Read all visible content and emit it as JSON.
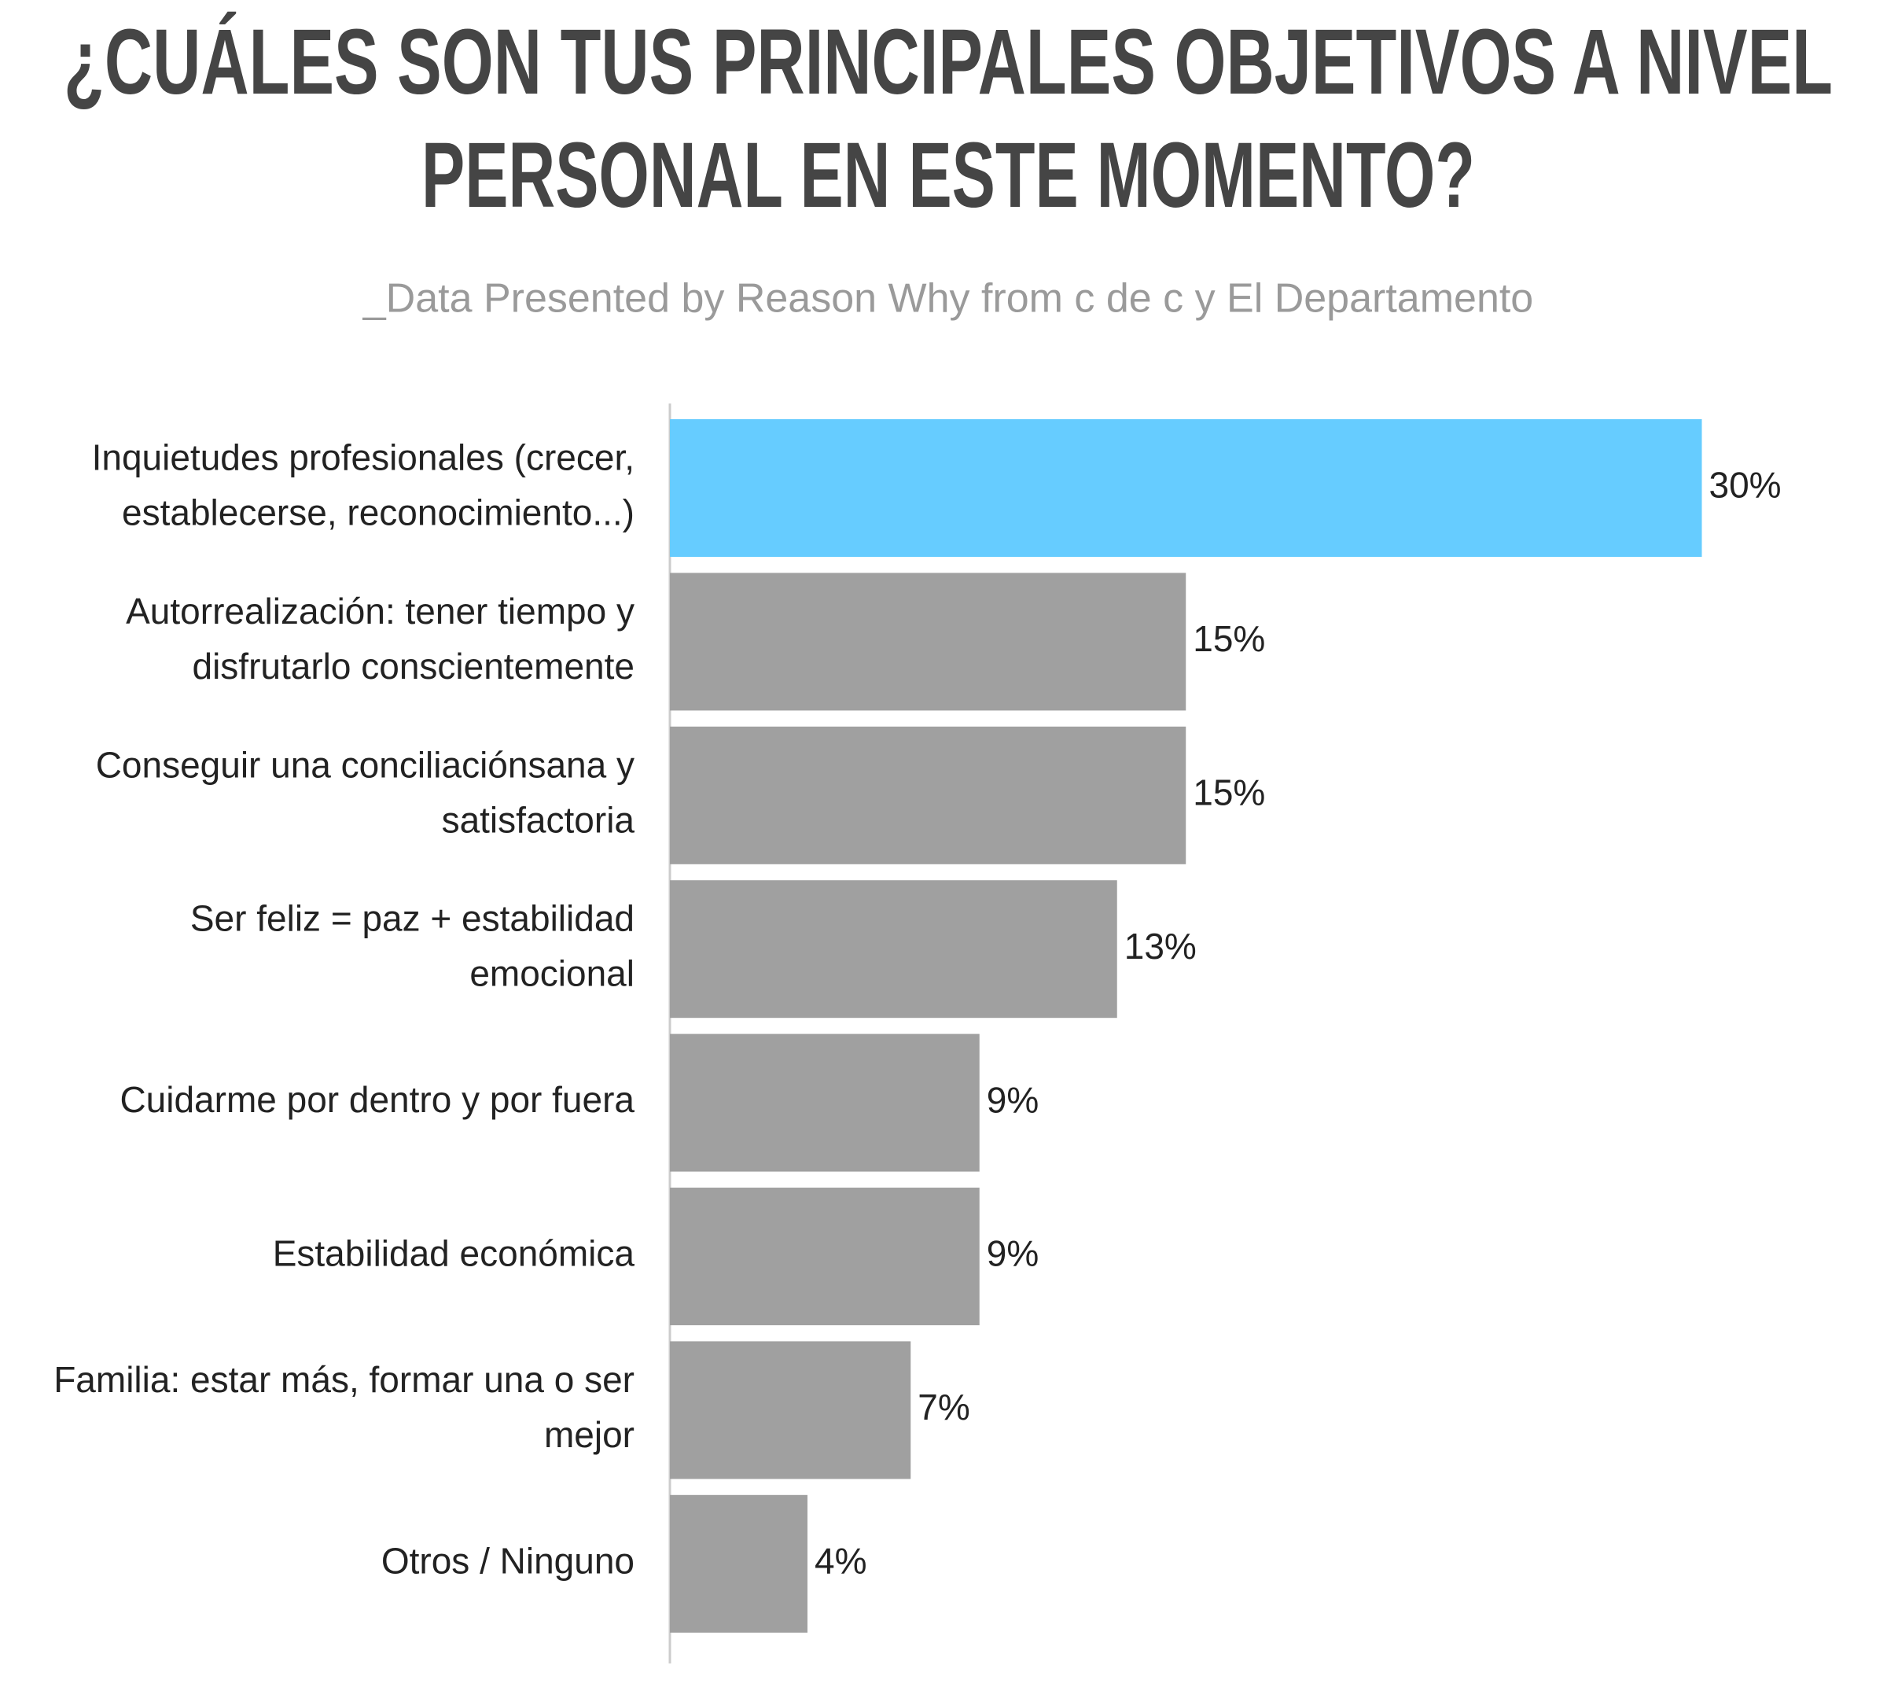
{
  "chart_data": {
    "type": "hbar",
    "title": [
      "¿CUÁLES SON TUS PRINCIPALES OBJETIVOS A NIVEL",
      "PERSONAL EN ESTE MOMENTO?"
    ],
    "subtitle": "_Data Presented by Reason Why from c de c y El Departamento",
    "categories": [
      "Inquietudes profesionales (crecer, establecerse, reconocimiento...)",
      "Autorrealización: tener tiempo y disfrutarlo conscientemente",
      "Conseguir una conciliaciónsana y satisfactoria",
      "Ser feliz = paz + estabilidad emocional",
      "Cuidarme por dentro y por fuera",
      "Estabilidad económica",
      "Familia: estar más, formar una o ser mejor",
      "Otros / Ninguno"
    ],
    "values": [
      30,
      15,
      15,
      13,
      9,
      9,
      7,
      4
    ],
    "value_labels": [
      "30%",
      "15%",
      "15%",
      "13%",
      "9%",
      "9%",
      "7%",
      "4%"
    ],
    "colors": [
      "#66ccff",
      "#a0a0a0",
      "#a0a0a0",
      "#a0a0a0",
      "#a0a0a0",
      "#a0a0a0",
      "#a0a0a0",
      "#a0a0a0"
    ]
  }
}
